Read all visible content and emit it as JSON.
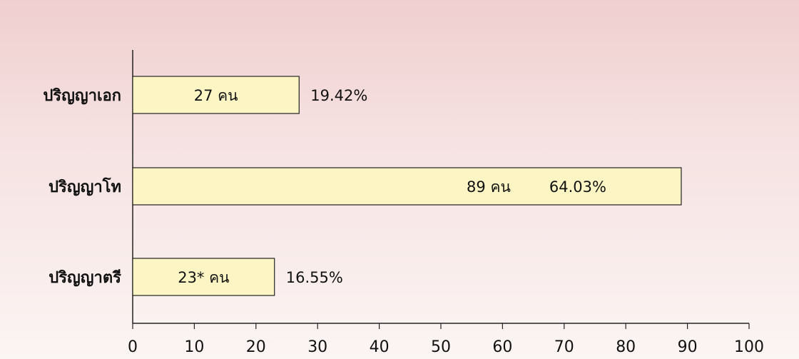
{
  "chart_data": {
    "type": "bar",
    "orientation": "horizontal",
    "categories": [
      "ปริญญาเอก",
      "ปริญญาโท",
      "ปริญญาตรี"
    ],
    "values": [
      27,
      89,
      23
    ],
    "bar_labels": [
      "27 คน",
      "89 คน",
      "23* คน"
    ],
    "percent_labels": [
      "19.42%",
      "64.03%",
      "16.55%"
    ],
    "xlim": [
      0,
      100
    ],
    "xticks": [
      0,
      10,
      20,
      30,
      40,
      50,
      60,
      70,
      80,
      90,
      100
    ],
    "grid": false,
    "colors": {
      "bar_fill": "#fdf6c4",
      "bar_stroke": "#222222",
      "axis": "#222222"
    }
  }
}
